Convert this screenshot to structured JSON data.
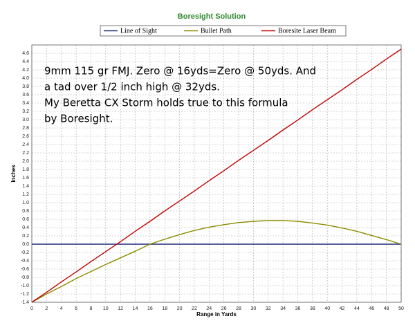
{
  "chart_data": {
    "type": "line",
    "title": "Boresight Solution",
    "x_label": "Range in Yards",
    "y_label": "Inches",
    "annotation": [
      "9mm 115 gr FMJ. Zero @ 16yds=Zero @ 50yds. And",
      "a tad over 1/2 inch high @ 32yds.",
      "My Beretta CX Storm holds true to this formula",
      "by Boresight."
    ],
    "x": [
      0,
      2,
      4,
      6,
      8,
      10,
      12,
      14,
      16,
      18,
      20,
      22,
      24,
      26,
      28,
      30,
      32,
      34,
      36,
      38,
      40,
      42,
      44,
      46,
      48,
      50
    ],
    "series": [
      {
        "name": "Line of Sight",
        "color": "#1f2d7a",
        "values": [
          0,
          0,
          0,
          0,
          0,
          0,
          0,
          0,
          0,
          0,
          0,
          0,
          0,
          0,
          0,
          0,
          0,
          0,
          0,
          0,
          0,
          0,
          0,
          0,
          0,
          0
        ]
      },
      {
        "name": "Bullet Path",
        "color": "#8b8b00",
        "values": [
          -1.4,
          -1.2,
          -1.02,
          -0.83,
          -0.66,
          -0.49,
          -0.33,
          -0.17,
          0,
          0.12,
          0.23,
          0.33,
          0.41,
          0.47,
          0.52,
          0.55,
          0.57,
          0.57,
          0.55,
          0.51,
          0.46,
          0.39,
          0.31,
          0.21,
          0.11,
          0
        ]
      },
      {
        "name": "Boresite Laser Beam",
        "color": "#c00000",
        "values": [
          -1.4,
          -1.16,
          -0.91,
          -0.67,
          -0.42,
          -0.18,
          0.06,
          0.31,
          0.55,
          0.8,
          1.04,
          1.28,
          1.53,
          1.77,
          2.02,
          2.26,
          2.5,
          2.75,
          2.99,
          3.24,
          3.48,
          3.72,
          3.97,
          4.21,
          4.46,
          4.7
        ]
      }
    ],
    "xlim": [
      0,
      50
    ],
    "xticks": [
      0,
      2,
      4,
      6,
      8,
      10,
      12,
      14,
      16,
      18,
      20,
      22,
      24,
      26,
      28,
      30,
      32,
      34,
      36,
      38,
      40,
      42,
      44,
      46,
      48,
      50
    ],
    "ylim": [
      -1.4,
      4.8
    ],
    "yticks": [
      -1.4,
      -1.2,
      {
        "value": -1,
        "label": "-1.0"
      },
      -0.8,
      -0.6,
      -0.4,
      -0.2,
      {
        "value": 0,
        "label": "0.0"
      },
      0.2,
      0.4,
      0.6,
      0.8,
      {
        "value": 1,
        "label": "1.0"
      },
      1.2,
      1.4,
      1.6,
      1.8,
      {
        "value": 2,
        "label": "2.0"
      },
      2.2,
      2.4,
      2.6,
      2.8,
      {
        "value": 3,
        "label": "3.0"
      },
      3.2,
      3.4,
      3.6,
      3.8,
      {
        "value": 4,
        "label": "4.0"
      },
      4.2,
      4.4,
      4.6
    ],
    "grid": true
  }
}
